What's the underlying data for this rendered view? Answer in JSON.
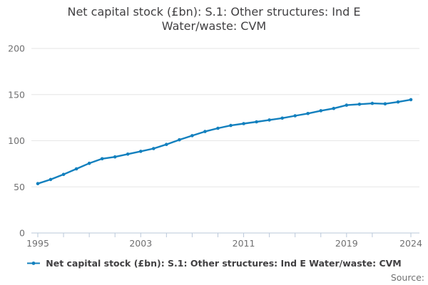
{
  "chart_data": {
    "type": "line",
    "title": "Net capital stock (£bn): S.1: Other structures: Ind E Water/waste: CVM",
    "title_lines": [
      "Net capital stock (£bn): S.1: Other structures: Ind E",
      "Water/waste: CVM"
    ],
    "x": [
      1995,
      1996,
      1997,
      1998,
      1999,
      2000,
      2001,
      2002,
      2003,
      2004,
      2005,
      2006,
      2007,
      2008,
      2009,
      2010,
      2011,
      2012,
      2013,
      2014,
      2015,
      2016,
      2017,
      2018,
      2019,
      2020,
      2021,
      2022,
      2023,
      2024
    ],
    "series": [
      {
        "name": "Net capital stock (£bn): S.1: Other structures: Ind E Water/waste: CVM",
        "values": [
          53.5,
          58,
          63.5,
          69.5,
          75.5,
          80.5,
          82.5,
          85.5,
          88.5,
          91.5,
          96,
          101,
          105.5,
          110,
          113.5,
          116.5,
          118.5,
          120.5,
          122.5,
          124.5,
          127,
          129.5,
          132.5,
          135,
          138.5,
          139.5,
          140.5,
          140,
          142,
          144.5
        ]
      }
    ],
    "xlabel": "",
    "ylabel": "",
    "ylim": [
      0,
      200
    ],
    "yticks": [
      0,
      50,
      100,
      150,
      200
    ],
    "xtick_labels": [
      1995,
      2003,
      2011,
      2019,
      2024
    ],
    "minor_xtick_step": 2,
    "grid": true,
    "legend_position": "bottom"
  },
  "colors": {
    "line": "#1380be",
    "grid": "#e6e6e6",
    "axis": "#bac8da",
    "tick_label": "#707071",
    "title": "#414042"
  },
  "footer": {
    "source_label": "Source:"
  }
}
